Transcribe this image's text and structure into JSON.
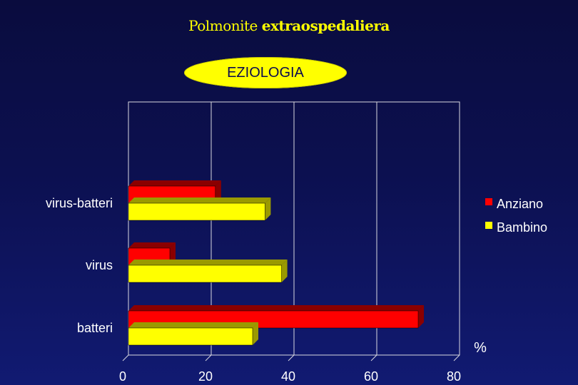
{
  "slide": {
    "title_plain": "Polmonite",
    "title_bold": "extraospedaliera",
    "badge_text": "EZIOLOGIA"
  },
  "colors": {
    "series_1": "#ff0000",
    "series_1_dark": "#8a0000",
    "series_2": "#ffff00",
    "series_2_dark": "#9a9a00",
    "background": "#0c1050"
  },
  "chart_data": {
    "type": "bar",
    "orientation": "horizontal",
    "style": "3d",
    "categories": [
      "virus-batteri",
      "virus",
      "batteri"
    ],
    "series": [
      {
        "name": "Anziano",
        "values": [
          21,
          10,
          70
        ]
      },
      {
        "name": "Bambino",
        "values": [
          33,
          37,
          30
        ]
      }
    ],
    "xlabel": "%",
    "xlim": [
      0,
      80
    ],
    "x_ticks": [
      "0",
      "20",
      "40",
      "60",
      "80"
    ],
    "grid": true,
    "legend_position": "right"
  }
}
